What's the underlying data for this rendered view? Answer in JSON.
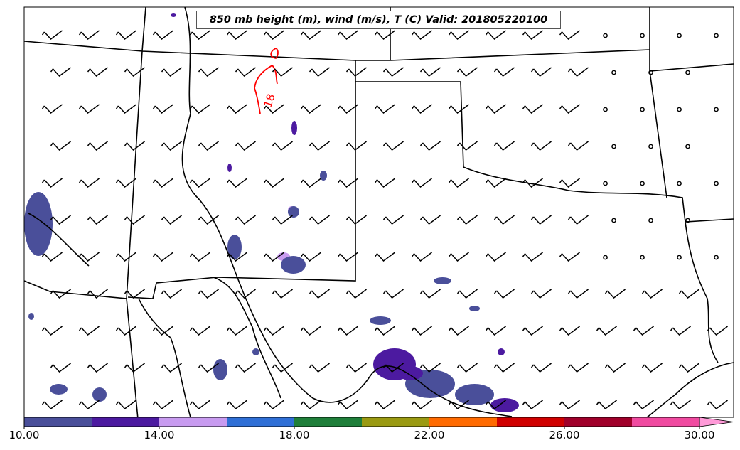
{
  "title": "850 mb height (m), wind (m/s), T (C) Valid: 201805220100",
  "contour_label": "18",
  "colorbar": {
    "colors": [
      "#4a4f9a",
      "#4c1aa0",
      "#c89bf0",
      "#2f6fd6",
      "#1f7f3a",
      "#9a9a12",
      "#ff6a00",
      "#d00000",
      "#a0002a",
      "#f04aa0",
      "#ff9ad8"
    ],
    "ticks": [
      "10.00",
      "14.00",
      "18.00",
      "22.00",
      "26.00",
      "30.00"
    ],
    "extend": "max"
  },
  "style": {
    "contour_color": "#ff0000",
    "boundary_color": "#000000"
  }
}
